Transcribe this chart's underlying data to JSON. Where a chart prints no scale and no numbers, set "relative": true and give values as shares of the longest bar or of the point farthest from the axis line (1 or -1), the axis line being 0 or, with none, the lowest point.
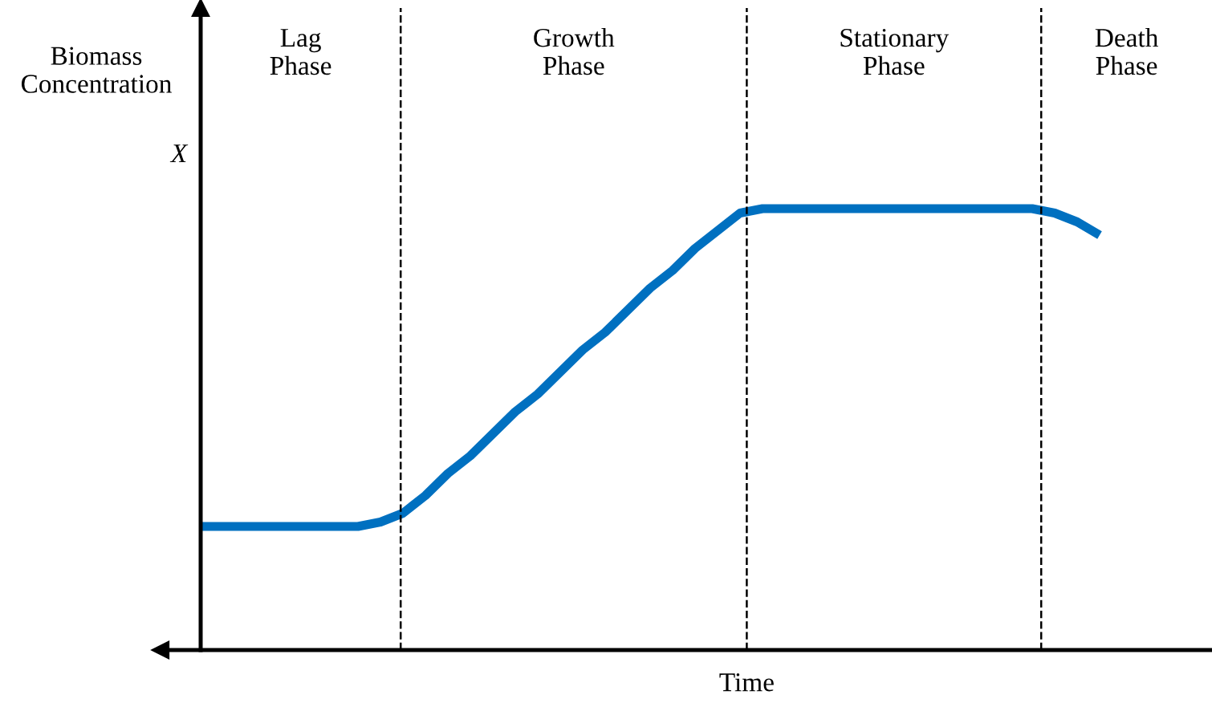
{
  "chart_data": {
    "type": "line",
    "relative": true,
    "xlabel": "Time",
    "ylabel": "Biomass\nConcentration",
    "categories": [
      null,
      null,
      null,
      null,
      null,
      null,
      null,
      null,
      null,
      null,
      null,
      null,
      null,
      null,
      null,
      null,
      null,
      null,
      null,
      null,
      null,
      null,
      null,
      null,
      null,
      null,
      null,
      null,
      null,
      null,
      null,
      null,
      null,
      null,
      null,
      null,
      null,
      null,
      null,
      null,
      null
    ],
    "series": [
      {
        "color": "#0070c0",
        "values": [
          0.28,
          0.28,
          0.28,
          0.28,
          0.28,
          0.28,
          0.28,
          0.28,
          0.29,
          0.31,
          0.35,
          0.4,
          0.44,
          0.49,
          0.54,
          0.58,
          0.63,
          0.68,
          0.72,
          0.77,
          0.82,
          0.86,
          0.91,
          0.95,
          0.99,
          1.0,
          1.0,
          1.0,
          1.0,
          1.0,
          1.0,
          1.0,
          1.0,
          1.0,
          1.0,
          1.0,
          1.0,
          1.0,
          0.99,
          0.97,
          0.94
        ]
      }
    ],
    "annotations": [
      "Lag\nPhase",
      "Growth\nPhase",
      "Stationary\nPhase",
      "Death\nPhase",
      "X"
    ],
    "legend": false,
    "tick_labels": false,
    "line_style": "solid",
    "marker": "none"
  }
}
